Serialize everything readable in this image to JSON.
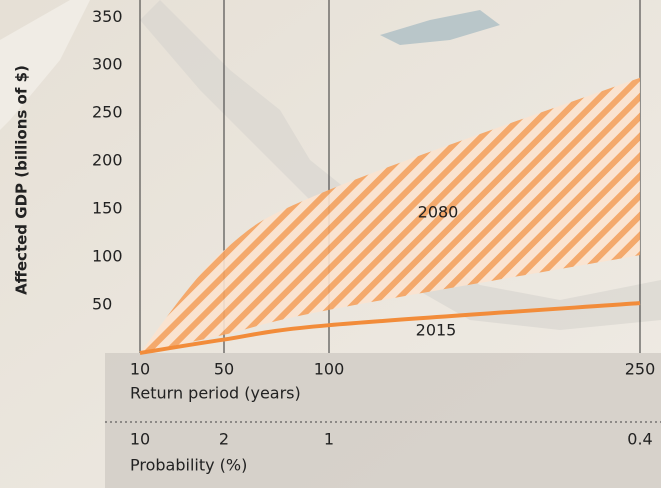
{
  "chart_data": {
    "type": "band-line",
    "y_label": "Affected GDP (billions of $)",
    "x_label": "Return period (years)",
    "categories": [
      "10",
      "50",
      "100",
      "250"
    ],
    "x2_label": "Probability (%)",
    "x2_categories": [
      "10",
      "2",
      "1",
      "0.4"
    ],
    "series": [
      {
        "name": "2080",
        "color": "#f28c3a",
        "low": [
          0,
          19,
          45,
          102
        ],
        "high": [
          0,
          107,
          170,
          287
        ]
      },
      {
        "name": "2015",
        "color": "#f28c3a",
        "values": [
          0,
          14,
          29,
          52
        ]
      }
    ],
    "ylim": [
      0,
      368
    ],
    "yticks": [
      50,
      100,
      150,
      200,
      250,
      300,
      350
    ]
  }
}
